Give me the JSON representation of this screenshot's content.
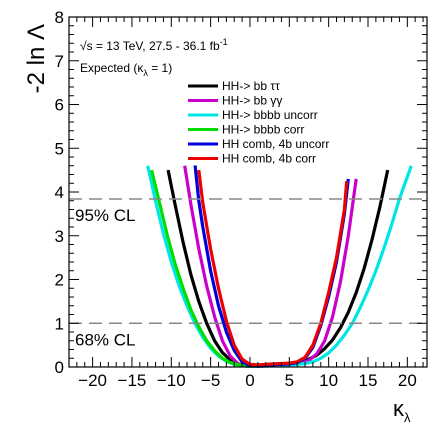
{
  "chart_data": {
    "type": "line",
    "ylabel": "-2 ln Λ",
    "xlabel": "κ",
    "xlabel_sub": "λ",
    "xlim": [
      -23,
      22.5
    ],
    "ylim": [
      0,
      8
    ],
    "x_ticks": [
      -20,
      -15,
      -10,
      -5,
      0,
      5,
      10,
      15,
      20
    ],
    "y_ticks": [
      0,
      1,
      2,
      3,
      4,
      5,
      6,
      7,
      8
    ],
    "annotations": {
      "energy": "√s = 13 TeV, 27.5 - 36.1 fb",
      "energy_sup": "-1",
      "expected_prefix": "Expected (κ",
      "expected_sub": "λ",
      "expected_suffix": " = 1)"
    },
    "reference_lines": [
      {
        "y": 3.84,
        "label": "95% CL"
      },
      {
        "y": 1.0,
        "label": "68% CL"
      }
    ],
    "legend_position": "top-right",
    "series": [
      {
        "name": "HH-> bb ττ",
        "color": "#000000",
        "x": [
          -10.4,
          -9.5,
          -8.5,
          -7.5,
          -6.5,
          -5.5,
          -4.5,
          -3.5,
          -2.5,
          -1.5,
          -0.5,
          0.5,
          1.5,
          2.5,
          3.5,
          4.5,
          5.5,
          6.5,
          7.5,
          8.5,
          9.5,
          10.5,
          11.5,
          12.5,
          13.5,
          14.5,
          15.5,
          16.5,
          17.5
        ],
        "y": [
          4.5,
          3.7,
          2.85,
          2.1,
          1.5,
          1.0,
          0.6,
          0.33,
          0.16,
          0.07,
          0.03,
          0.02,
          0.02,
          0.03,
          0.05,
          0.07,
          0.09,
          0.12,
          0.18,
          0.27,
          0.42,
          0.62,
          0.9,
          1.25,
          1.7,
          2.25,
          2.9,
          3.65,
          4.5
        ]
      },
      {
        "name": "HH-> bb γγ",
        "color": "#cc00cc",
        "x": [
          -8.3,
          -7.5,
          -6.5,
          -5.5,
          -4.5,
          -3.5,
          -2.5,
          -1.5,
          -0.5,
          0.5,
          1.5,
          2.5,
          3.5,
          4.5,
          5.5,
          6.5,
          7.5,
          8.5,
          9.5,
          10.5,
          11.5,
          12.5,
          13.5
        ],
        "y": [
          4.6,
          3.7,
          2.7,
          1.85,
          1.15,
          0.6,
          0.25,
          0.07,
          0.02,
          0.02,
          0.03,
          0.04,
          0.05,
          0.06,
          0.07,
          0.09,
          0.15,
          0.3,
          0.6,
          1.15,
          1.95,
          3.0,
          4.3
        ]
      },
      {
        "name": "HH-> bbbb uncorr",
        "color": "#00e6e6",
        "x": [
          -13.0,
          -12.0,
          -11.0,
          -10.0,
          -9.0,
          -8.0,
          -7.0,
          -6.0,
          -5.0,
          -4.0,
          -3.0,
          -2.0,
          -1.0,
          0.0,
          1.0,
          2.0,
          3.0,
          4.0,
          5.0,
          6.0,
          7.0,
          8.0,
          9.0,
          10.0,
          11.0,
          12.0,
          13.0,
          14.0,
          15.0,
          16.0,
          17.0,
          18.0,
          19.0,
          20.5
        ],
        "y": [
          4.6,
          3.8,
          3.05,
          2.4,
          1.85,
          1.4,
          1.0,
          0.68,
          0.43,
          0.25,
          0.13,
          0.06,
          0.03,
          0.02,
          0.02,
          0.02,
          0.03,
          0.04,
          0.05,
          0.06,
          0.08,
          0.12,
          0.2,
          0.32,
          0.5,
          0.73,
          1.0,
          1.35,
          1.75,
          2.2,
          2.7,
          3.25,
          3.85,
          4.6
        ]
      },
      {
        "name": "HH-> bbbb corr",
        "color": "#00dd00",
        "x": [
          -12.5,
          -11.5,
          -10.5,
          -9.5,
          -8.5,
          -7.5,
          -6.5,
          -5.5,
          -4.5,
          -3.5,
          -2.5,
          -1.5,
          -0.5,
          0.5
        ],
        "y": [
          4.5,
          3.75,
          3.0,
          2.35,
          1.8,
          1.3,
          0.92,
          0.6,
          0.37,
          0.2,
          0.1,
          0.05,
          0.02,
          0.02
        ]
      },
      {
        "name": "HH comb, 4b uncorr",
        "color": "#0000dd",
        "x": [
          -7.0,
          -6.5,
          -6.0,
          -5.0,
          -4.0,
          -3.0,
          -2.0,
          -1.0,
          0.0,
          1.0,
          2.0,
          3.0,
          4.0,
          5.0,
          6.0,
          7.0,
          8.0,
          9.0,
          10.0,
          11.0,
          12.0,
          12.5
        ],
        "y": [
          4.65,
          3.8,
          3.2,
          2.2,
          1.4,
          0.8,
          0.38,
          0.12,
          0.03,
          0.02,
          0.03,
          0.05,
          0.06,
          0.07,
          0.1,
          0.2,
          0.45,
          0.95,
          1.6,
          2.4,
          3.5,
          4.3
        ]
      },
      {
        "name": "HH comb, 4b corr",
        "color": "#ee0000",
        "x": [
          -6.5,
          -6.0,
          -5.0,
          -4.0,
          -3.0,
          -2.0,
          -1.0,
          0.0,
          1.0,
          2.0,
          3.0,
          4.0,
          5.0,
          6.0,
          7.0,
          8.0,
          9.0,
          10.0,
          11.0,
          12.0,
          12.3
        ],
        "y": [
          4.5,
          3.75,
          2.7,
          1.8,
          1.05,
          0.5,
          0.18,
          0.06,
          0.05,
          0.06,
          0.07,
          0.08,
          0.09,
          0.12,
          0.22,
          0.5,
          1.0,
          1.7,
          2.5,
          3.6,
          4.25
        ]
      }
    ]
  }
}
